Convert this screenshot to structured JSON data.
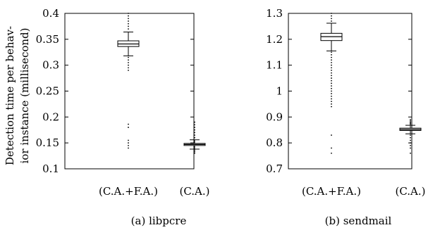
{
  "ylabel_lines": [
    "Detection time per behav-",
    "ior instance (millisecond)"
  ],
  "chart_data": [
    {
      "type": "box",
      "caption": "(a) libpcre",
      "ylim": [
        0.1,
        0.4
      ],
      "yticks": [
        0.1,
        0.15,
        0.2,
        0.25,
        0.3,
        0.35,
        0.4
      ],
      "ytick_labels": [
        "0.1",
        "0.15",
        "0.2",
        "0.25",
        "0.3",
        "0.35",
        "0.4"
      ],
      "categories": [
        "(C.A.+F.A.)",
        "(C.A.)"
      ],
      "boxes": [
        {
          "whisker_low": 0.318,
          "q1": 0.336,
          "median": 0.341,
          "q3": 0.347,
          "whisker_high": 0.364,
          "outliers": [
            0.14,
            0.145,
            0.15,
            0.155,
            0.18,
            0.186,
            0.29,
            0.295,
            0.3,
            0.305,
            0.31,
            0.315,
            0.37,
            0.375,
            0.38,
            0.385,
            0.39,
            0.395,
            0.4
          ]
        },
        {
          "whisker_low": 0.138,
          "q1": 0.145,
          "median": 0.147,
          "q3": 0.149,
          "whisker_high": 0.156,
          "outliers": [
            0.13,
            0.133,
            0.136,
            0.16,
            0.165,
            0.17,
            0.175,
            0.18,
            0.185,
            0.19
          ]
        }
      ]
    },
    {
      "type": "box",
      "caption": "(b) sendmail",
      "ylim": [
        0.7,
        1.3
      ],
      "yticks": [
        0.7,
        0.8,
        0.9,
        1.0,
        1.1,
        1.2,
        1.3
      ],
      "ytick_labels": [
        "0.7",
        "0.8",
        "0.9",
        "1",
        "1.1",
        "1.2",
        "1.3"
      ],
      "categories": [
        "(C.A.+F.A.)",
        "(C.A.)"
      ],
      "boxes": [
        {
          "whisker_low": 1.155,
          "q1": 1.195,
          "median": 1.21,
          "q3": 1.223,
          "whisker_high": 1.262,
          "outliers": [
            0.76,
            0.78,
            0.83,
            0.94,
            0.95,
            0.96,
            0.97,
            0.98,
            0.99,
            1.0,
            1.01,
            1.02,
            1.03,
            1.04,
            1.05,
            1.06,
            1.07,
            1.08,
            1.09,
            1.1,
            1.11,
            1.12,
            1.13,
            1.14,
            1.15,
            1.27,
            1.28,
            1.29,
            1.3
          ]
        },
        {
          "whisker_low": 0.835,
          "q1": 0.848,
          "median": 0.852,
          "q3": 0.857,
          "whisker_high": 0.868,
          "outliers": [
            0.76,
            0.78,
            0.79,
            0.8,
            0.81,
            0.82,
            0.83,
            0.872,
            0.876,
            0.88,
            0.885,
            0.89
          ]
        }
      ]
    }
  ]
}
